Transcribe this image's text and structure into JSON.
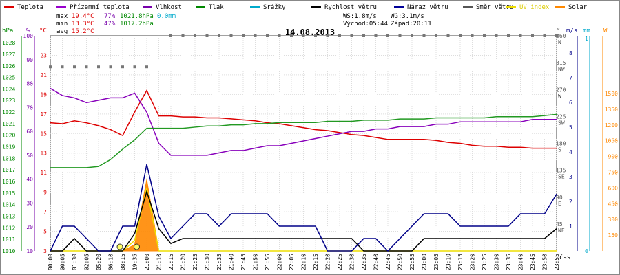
{
  "legend": [
    {
      "label": "Teplota",
      "color": "#dd0000"
    },
    {
      "label": "Přízemní teplota",
      "color": "#9900cc"
    },
    {
      "label": "Vlhkost",
      "color": "#7700aa"
    },
    {
      "label": "Tlak",
      "color": "#008800"
    },
    {
      "label": "Srážky",
      "color": "#00aacc"
    },
    {
      "label": "Rychlost větru",
      "color": "#000000"
    },
    {
      "label": "Náraz větru",
      "color": "#000099"
    },
    {
      "label": "Směr větru",
      "color": "#555555"
    },
    {
      "label": "UV index",
      "color": "#eedd00"
    },
    {
      "label": "Solar",
      "color": "#ff8800"
    }
  ],
  "stats": {
    "max": {
      "label": "max",
      "temp": "19.4°C",
      "hum": "77%",
      "press": "1021.8hPa",
      "rain": "0.0mm"
    },
    "min": {
      "label": "min",
      "temp": "13.3°C",
      "hum": "47%",
      "press": "1017.2hPa"
    },
    "avg": {
      "label": "avg",
      "temp": "15.2°C"
    }
  },
  "wind_info": {
    "ws": "WS:1.8m/s",
    "wg": "WG:3.1m/s",
    "sunrise": "Východ:05:44",
    "sunset": "Západ:20:11"
  },
  "chart_data": {
    "type": "line",
    "title": "14.08.2013",
    "xlabel": "čas",
    "categories": [
      "00:00",
      "00:05",
      "01:30",
      "02:05",
      "05:20",
      "06:10",
      "08:15",
      "19:35",
      "21:00",
      "21:10",
      "21:15",
      "21:20",
      "21:25",
      "21:30",
      "21:35",
      "21:40",
      "21:45",
      "21:50",
      "21:55",
      "22:00",
      "22:05",
      "22:10",
      "22:15",
      "22:20",
      "22:25",
      "22:30",
      "22:35",
      "22:40",
      "22:45",
      "22:50",
      "22:55",
      "23:00",
      "23:05",
      "23:10",
      "23:15",
      "23:20",
      "23:25",
      "23:30",
      "23:35",
      "23:40",
      "23:45",
      "23:50",
      "23:55"
    ],
    "axes": {
      "left_units": [
        "hPa",
        "%",
        "°C"
      ],
      "right_units": [
        "°",
        "m/s",
        "mm",
        "W"
      ],
      "hpa_ticks": [
        "1010",
        "1011",
        "1012",
        "1013",
        "1014",
        "1015",
        "1016",
        "1017",
        "1018",
        "1019",
        "1020",
        "1021",
        "1022",
        "1023",
        "1024",
        "1025",
        "1026",
        "1027",
        "1028"
      ],
      "pct_ticks": [
        "10",
        "20",
        "30",
        "40",
        "50",
        "60",
        "70",
        "80",
        "90",
        "100"
      ],
      "temp_ticks": [
        "3",
        "5",
        "7",
        "9",
        "11",
        "13",
        "15",
        "17",
        "19",
        "21",
        "23"
      ],
      "dir_ticks": [
        {
          "v": "360",
          "d": "N"
        },
        {
          "v": "315",
          "d": "NW"
        },
        {
          "v": "270",
          "d": "W"
        },
        {
          "v": "225",
          "d": "SW"
        },
        {
          "v": "180",
          "d": "S"
        },
        {
          "v": "135",
          "d": "SE"
        },
        {
          "v": "90",
          "d": "E"
        },
        {
          "v": "45",
          "d": "NE"
        }
      ],
      "ms_ticks": [
        "1",
        "2",
        "3",
        "4",
        "5",
        "6",
        "7",
        "8"
      ],
      "mm_ticks": [
        "0",
        "1"
      ],
      "w_ticks": [
        "150",
        "300",
        "450",
        "600",
        "750",
        "900",
        "1050",
        "1200",
        "1350",
        "1500"
      ],
      "temp_range": [
        3,
        25
      ],
      "pct_range": [
        10,
        100
      ],
      "hpa_range": [
        1010,
        1028.6
      ],
      "dir_range": [
        0,
        360
      ],
      "ms_range": [
        0,
        8.7
      ],
      "w_range": [
        0,
        2050
      ]
    },
    "series": [
      {
        "name": "Teplota",
        "color": "#dd0000",
        "axis": "temp",
        "values": [
          16.1,
          16.0,
          16.3,
          16.1,
          15.8,
          15.4,
          14.8,
          17.2,
          19.4,
          16.8,
          16.8,
          16.7,
          16.7,
          16.6,
          16.6,
          16.5,
          16.4,
          16.3,
          16.1,
          16.0,
          15.8,
          15.6,
          15.4,
          15.3,
          15.1,
          14.9,
          14.8,
          14.6,
          14.4,
          14.4,
          14.4,
          14.4,
          14.3,
          14.1,
          14.0,
          13.8,
          13.7,
          13.7,
          13.6,
          13.6,
          13.5,
          13.5,
          13.5
        ]
      },
      {
        "name": "Vlhkost",
        "color": "#8800bb",
        "axis": "pct",
        "values": [
          78,
          75,
          74,
          72,
          73,
          74,
          74,
          76,
          68,
          55,
          50,
          50,
          50,
          50,
          51,
          52,
          52,
          53,
          54,
          54,
          55,
          56,
          57,
          58,
          59,
          60,
          60,
          61,
          61,
          62,
          62,
          62,
          63,
          63,
          64,
          64,
          64,
          64,
          64,
          64,
          65,
          65,
          65
        ]
      },
      {
        "name": "Tlak",
        "color": "#229922",
        "axis": "hpa",
        "values": [
          1017.2,
          1017.2,
          1017.2,
          1017.2,
          1017.3,
          1017.9,
          1018.8,
          1019.6,
          1020.6,
          1020.6,
          1020.6,
          1020.6,
          1020.7,
          1020.8,
          1020.8,
          1020.9,
          1020.9,
          1021.0,
          1021.0,
          1021.1,
          1021.1,
          1021.1,
          1021.1,
          1021.2,
          1021.2,
          1021.2,
          1021.3,
          1021.3,
          1021.3,
          1021.4,
          1021.4,
          1021.4,
          1021.5,
          1021.5,
          1021.5,
          1021.5,
          1021.5,
          1021.6,
          1021.6,
          1021.6,
          1021.6,
          1021.7,
          1021.8
        ]
      },
      {
        "name": "Rychlost větru",
        "color": "#000000",
        "axis": "ms",
        "values": [
          0,
          0,
          0.5,
          0,
          0,
          0,
          0,
          0.7,
          2.4,
          0.9,
          0.3,
          0.5,
          0.5,
          0.5,
          0.5,
          0.5,
          0.5,
          0.5,
          0.5,
          0.5,
          0.5,
          0.5,
          0.5,
          0.5,
          0.5,
          0.5,
          0,
          0,
          0,
          0,
          0,
          0.5,
          0.5,
          0.5,
          0.5,
          0.5,
          0.5,
          0.5,
          0.5,
          0.5,
          0.5,
          0.5,
          0.9
        ]
      },
      {
        "name": "Náraz větru",
        "color": "#000088",
        "axis": "ms",
        "values": [
          0,
          1,
          1,
          0.5,
          0,
          0,
          1,
          1,
          3.5,
          1.4,
          0.5,
          1,
          1.5,
          1.5,
          1,
          1.5,
          1.5,
          1.5,
          1.5,
          1,
          1,
          1,
          1,
          0,
          0,
          0,
          0.5,
          0.5,
          0,
          0.5,
          1,
          1.5,
          1.5,
          1.5,
          1,
          1,
          1,
          1,
          1,
          1.5,
          1.5,
          1.5,
          2.3
        ]
      }
    ],
    "wind_dir": {
      "name": "Směr větru",
      "color": "#777777",
      "values": [
        308,
        308,
        308,
        308,
        308,
        308,
        308,
        308,
        308,
        null,
        360,
        360,
        360,
        360,
        360,
        360,
        360,
        360,
        360,
        360,
        360,
        360,
        360,
        360,
        360,
        360,
        360,
        360,
        360,
        360,
        360,
        360,
        360,
        360,
        360,
        360,
        360,
        360,
        360,
        360,
        360,
        360,
        360
      ]
    },
    "solar": {
      "name": "Solar",
      "color": "#ff8800",
      "values": [
        0,
        0,
        0,
        0,
        0,
        0,
        0,
        60,
        680,
        0,
        0,
        0,
        0,
        0,
        0,
        0,
        0,
        0,
        0,
        0,
        0,
        0,
        0,
        0,
        0,
        0,
        0,
        0,
        0,
        0,
        0,
        0,
        0,
        0,
        0,
        0,
        0,
        0,
        0,
        0,
        0,
        0,
        0
      ]
    },
    "uv": {
      "name": "UV index",
      "color": "#eedd00",
      "values": [
        0,
        0,
        0,
        0,
        0,
        0,
        0,
        0.1,
        0.6,
        0,
        0,
        0,
        0,
        0,
        0,
        0,
        0,
        0,
        0,
        0,
        0,
        0,
        0,
        0,
        0,
        0,
        0,
        0,
        0,
        0,
        0,
        0,
        0,
        0,
        0,
        0,
        0,
        0,
        0,
        0,
        0,
        0,
        0
      ]
    }
  }
}
